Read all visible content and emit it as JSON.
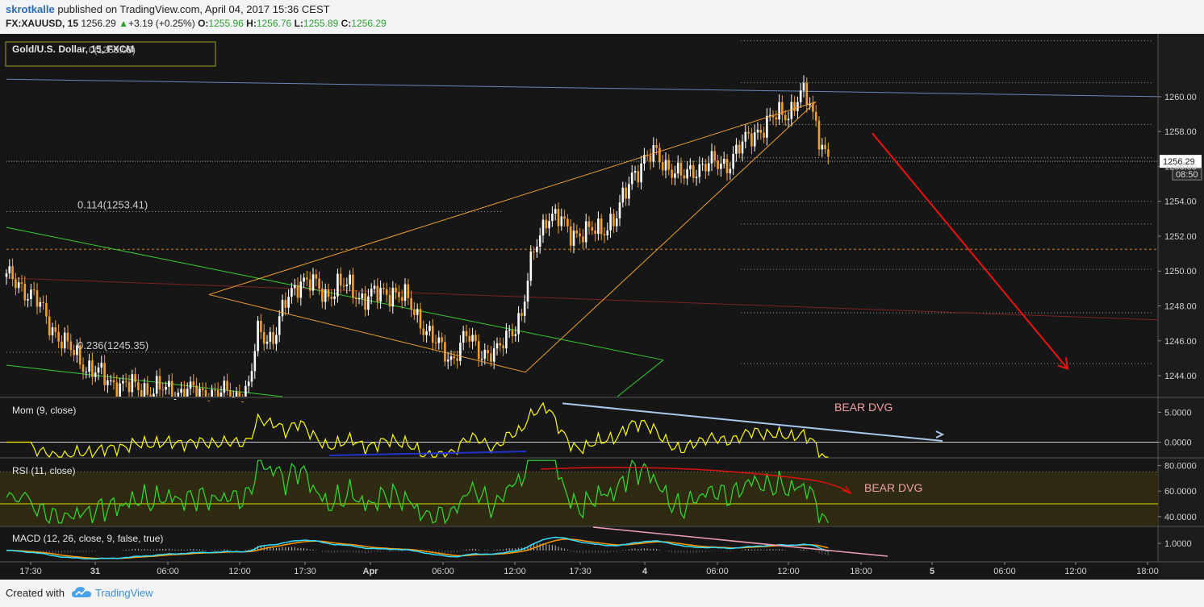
{
  "header": {
    "author": "skrotkalle",
    "published": " published on TradingView.com, April 04, 2017 15:36 CEST",
    "symbol": "FX:XAUUSD, 15",
    "last": "1256.29",
    "change": "+3.19 (+0.25%)",
    "o_label": "O:",
    "o_value": "1255.96",
    "h_label": "H:",
    "h_value": "1256.76",
    "l_label": "L:",
    "l_value": "1255.89",
    "c_label": "C:",
    "c_value": "1256.29"
  },
  "footer": {
    "created_with": "Created with",
    "brand": "TradingView"
  },
  "colors": {
    "background": "#161616",
    "candle_up": "#ffffff",
    "candle_down": "#f0a030",
    "price_axis": "#1f1f1f",
    "momentum": "#ffff00",
    "rsi": "#33dd33",
    "macd": "#33ddff",
    "signal": "#ff9900",
    "bear_arrow": "#ee1111",
    "wedge": "#f0a030",
    "channel": "#33cc33",
    "resistance": "#6688bb",
    "fib_text": "#cccccc"
  },
  "chart_data": [
    {
      "type": "candlestick",
      "title": "Gold/U.S. Dollar, 15, FXCM",
      "label_overlap": "0(1260.05)",
      "ylim": [
        1242.8,
        1263.6
      ],
      "y_ticks": [
        "1260.00",
        "1258.00",
        "1256.00",
        "1254.00",
        "1252.00",
        "1250.00",
        "1248.00",
        "1246.00",
        "1244.00"
      ],
      "y_tick_values": [
        1260,
        1258,
        1256,
        1254,
        1252,
        1250,
        1248,
        1246,
        1244
      ],
      "last_price_label": "1256.29",
      "countdown_label": "08:50",
      "x_ticks": [
        "17:30",
        "31",
        "06:00",
        "12:00",
        "17:30",
        "Apr",
        "06:00",
        "12:00",
        "17:30",
        "4",
        "06:00",
        "12:00",
        "18:00",
        "5",
        "06:00",
        "12:00",
        "18:00"
      ],
      "fib_levels": [
        {
          "label": "0.114(1253.41)",
          "value": 1253.41
        },
        {
          "label": "0.236(1245.35)",
          "value": 1245.35
        }
      ],
      "anchors": [
        [
          0,
          1249.6
        ],
        [
          4,
          1249.3
        ],
        [
          9,
          1248.5
        ],
        [
          14,
          1247.0
        ],
        [
          20,
          1245.6
        ],
        [
          26,
          1244.6
        ],
        [
          33,
          1243.7
        ],
        [
          42,
          1243.3
        ],
        [
          55,
          1243.1
        ],
        [
          66,
          1243.0
        ],
        [
          75,
          1242.9
        ],
        [
          79,
          1243.2
        ],
        [
          82,
          1246.5
        ],
        [
          87,
          1246.2
        ],
        [
          92,
          1248.5
        ],
        [
          96,
          1249.6
        ],
        [
          100,
          1249.2
        ],
        [
          104,
          1248.6
        ],
        [
          108,
          1249.2
        ],
        [
          112,
          1249.0
        ],
        [
          116,
          1248.5
        ],
        [
          121,
          1248.6
        ],
        [
          126,
          1248.9
        ],
        [
          130,
          1248.4
        ],
        [
          135,
          1247.2
        ],
        [
          140,
          1245.8
        ],
        [
          145,
          1245.0
        ],
        [
          150,
          1246.2
        ],
        [
          155,
          1245.4
        ],
        [
          160,
          1245.2
        ],
        [
          164,
          1246.6
        ],
        [
          168,
          1247.4
        ],
        [
          172,
          1251.2
        ],
        [
          176,
          1253.2
        ],
        [
          180,
          1252.9
        ],
        [
          184,
          1252.3
        ],
        [
          189,
          1252.1
        ],
        [
          194,
          1252.5
        ],
        [
          199,
          1253.0
        ],
        [
          204,
          1255.6
        ],
        [
          208,
          1256.3
        ],
        [
          212,
          1256.7
        ],
        [
          216,
          1256.0
        ],
        [
          220,
          1255.3
        ],
        [
          225,
          1256.0
        ],
        [
          230,
          1256.1
        ],
        [
          235,
          1256.2
        ],
        [
          240,
          1257.2
        ],
        [
          244,
          1258.0
        ],
        [
          248,
          1258.4
        ],
        [
          252,
          1259.0
        ],
        [
          256,
          1259.3
        ],
        [
          259,
          1260.1
        ],
        [
          262,
          1259.6
        ],
        [
          265,
          1257.9
        ],
        [
          268,
          1256.3
        ]
      ]
    },
    {
      "type": "line",
      "title": "Mom (9, close)",
      "annotation": "BEAR DVG",
      "ylim": [
        -2.5,
        7.5
      ],
      "y_ticks": [
        "5.0000",
        "0.0000"
      ],
      "y_tick_values": [
        5,
        0
      ]
    },
    {
      "type": "line",
      "title": "RSI (11, close)",
      "annotation": "BEAR DVG",
      "ylim": [
        33,
        86
      ],
      "y_ticks": [
        "80.0000",
        "60.0000",
        "40.0000"
      ],
      "y_tick_values": [
        80,
        60,
        40
      ],
      "bands": [
        50,
        75
      ]
    },
    {
      "type": "line",
      "title": "MACD (12, 26, close, 9, false, true)",
      "ylim": [
        -1.6,
        3.4
      ],
      "y_ticks": [
        "1.0000"
      ],
      "y_tick_values": [
        1
      ]
    }
  ]
}
